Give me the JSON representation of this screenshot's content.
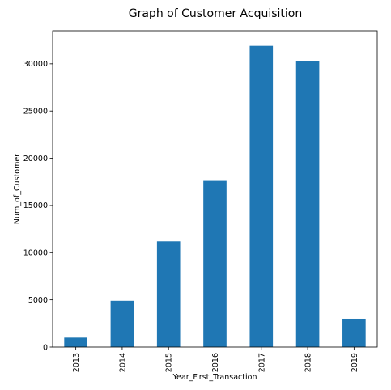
{
  "chart_data": {
    "type": "bar",
    "title": "Graph of Customer Acquisition",
    "xlabel": "Year_First_Transaction",
    "ylabel": "Num_of_Customer",
    "categories": [
      "2013",
      "2014",
      "2015",
      "2016",
      "2017",
      "2018",
      "2019"
    ],
    "values": [
      1000,
      4900,
      11200,
      17600,
      31900,
      30300,
      3000
    ],
    "ylim": [
      0,
      33500
    ],
    "yticks": [
      0,
      5000,
      10000,
      15000,
      20000,
      25000,
      30000
    ],
    "grid": false,
    "legend": "none",
    "colors": {
      "bar": "#1f77b4",
      "axis": "#000000"
    }
  }
}
